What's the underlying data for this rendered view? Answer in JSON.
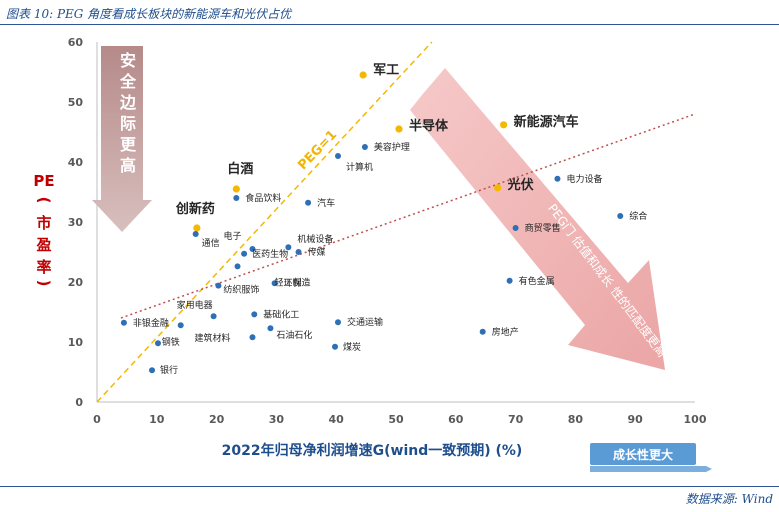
{
  "title": "图表 10:  PEG 角度看成长板块的新能源车和光伏占优",
  "source": "数据来源:  Wind",
  "colors": {
    "point": "#2e6fb5",
    "highlight": "#f5b800",
    "peg_line": "#f5b800",
    "trend_line": "#c0504d",
    "safety_arrow": "#c9a7a6",
    "big_arrow": "#f2b8b8",
    "growth_box": "#5b9bd5",
    "axis": "#bfbfbf"
  },
  "chart_data": {
    "type": "scatter",
    "xlabel": "2022年归母净利润增速G(wind一致预期) (%)",
    "ylabel": [
      "PE",
      "(",
      "市",
      "盈",
      "率",
      ")"
    ],
    "xlim": [
      0,
      100
    ],
    "ylim": [
      0,
      60
    ],
    "xticks": [
      0,
      10,
      20,
      30,
      40,
      50,
      60,
      70,
      80,
      90,
      100
    ],
    "yticks": [
      0,
      10,
      20,
      30,
      40,
      50,
      60
    ],
    "grid": false,
    "points": [
      {
        "name": "军工",
        "x": 44.5,
        "y": 54.5,
        "highlight": true
      },
      {
        "name": "半导体",
        "x": 50.5,
        "y": 45.5,
        "highlight": true
      },
      {
        "name": "新能源汽车",
        "x": 68,
        "y": 46.2,
        "highlight": true
      },
      {
        "name": "光伏",
        "x": 67,
        "y": 35.7,
        "highlight": true
      },
      {
        "name": "白酒",
        "x": 23.3,
        "y": 35.5,
        "highlight": true
      },
      {
        "name": "创新药",
        "x": 16.7,
        "y": 29,
        "highlight": true
      },
      {
        "name": "美容护理",
        "x": 44.8,
        "y": 42.5
      },
      {
        "name": "计算机",
        "x": 40.3,
        "y": 41
      },
      {
        "name": "电力设备",
        "x": 77,
        "y": 37.2
      },
      {
        "name": "综合",
        "x": 87.5,
        "y": 31
      },
      {
        "name": "食品饮料",
        "x": 23.3,
        "y": 34
      },
      {
        "name": "汽车",
        "x": 35.3,
        "y": 33.2
      },
      {
        "name": "商贸零售",
        "x": 70,
        "y": 29
      },
      {
        "name": "通信",
        "x": 16.5,
        "y": 28
      },
      {
        "name": "电子",
        "x": 26,
        "y": 25.5
      },
      {
        "name": "机械设备",
        "x": 32,
        "y": 25.8
      },
      {
        "name": "传媒",
        "x": 33.7,
        "y": 25
      },
      {
        "name": "医药生物",
        "x": 24.6,
        "y": 24.7
      },
      {
        "name": "轻工制造",
        "x": 23.5,
        "y": 22.6
      },
      {
        "name": "有色金属",
        "x": 69,
        "y": 20.2
      },
      {
        "name": "环保",
        "x": 29.7,
        "y": 19.8
      },
      {
        "name": "纺织服饰",
        "x": 20.3,
        "y": 19.4
      },
      {
        "name": "家用电器",
        "x": 19.5,
        "y": 14.3
      },
      {
        "name": "基础化工",
        "x": 26.3,
        "y": 14.6
      },
      {
        "name": "非银金融",
        "x": 4.5,
        "y": 13.2
      },
      {
        "name": "交通运输",
        "x": 40.3,
        "y": 13.3
      },
      {
        "name": "钢铁",
        "x": 14,
        "y": 12.8
      },
      {
        "name": "石油石化",
        "x": 29,
        "y": 12.3
      },
      {
        "name": "房地产",
        "x": 64.5,
        "y": 11.7
      },
      {
        "name": "建筑材料",
        "x": 26,
        "y": 10.8
      },
      {
        "name": "煤炭",
        "x": 39.8,
        "y": 9.2
      },
      {
        "name": "有色",
        "x": 10.2,
        "y": 9.8
      },
      {
        "name": "银行",
        "x": 9.2,
        "y": 5.3
      }
    ],
    "lines": [
      {
        "name": "PEG=1",
        "x": [
          0,
          56
        ],
        "y": [
          0,
          60
        ]
      },
      {
        "name": "trend",
        "x": [
          4,
          100
        ],
        "y": [
          14,
          48
        ]
      }
    ],
    "annotations": {
      "peg_label": "PEG=1",
      "safety_arrow": [
        "安",
        "全",
        "边",
        "际",
        "更",
        "高"
      ],
      "big_arrow": "PEG门 估值和成长 性的匹配度更高",
      "growth_box": "成长性更大"
    }
  }
}
